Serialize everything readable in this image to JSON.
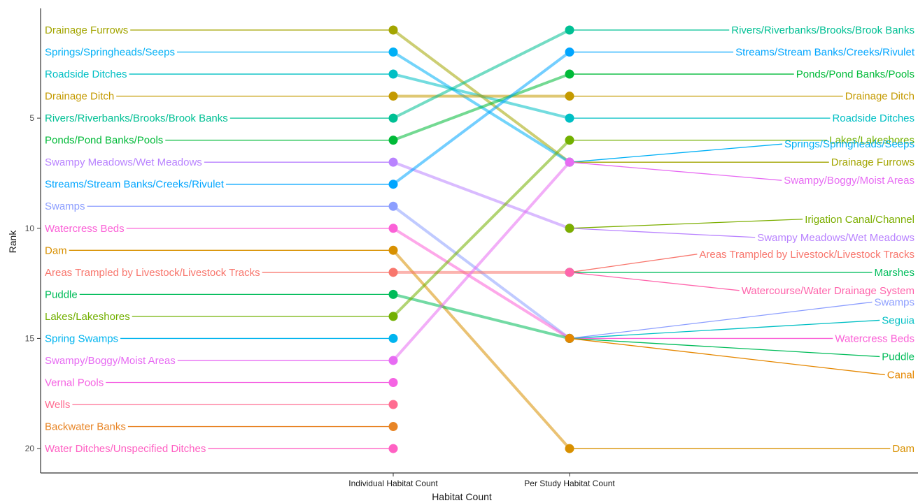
{
  "chart_data": {
    "type": "line",
    "subtype": "bump",
    "xlabel": "Habitat Count",
    "ylabel": "Rank",
    "x_categories": [
      "Individual Habitat Count",
      "Per Study Habitat Count"
    ],
    "y_ticks": [
      5,
      10,
      15,
      20
    ],
    "ylim": [
      0.5,
      21
    ],
    "y_reversed": true,
    "grid": false,
    "legend": "none",
    "series": [
      {
        "name": "Drainage Furrows",
        "color": "#A3A500",
        "ranks": [
          1,
          7
        ]
      },
      {
        "name": "Springs/Springheads/Seeps",
        "color": "#00B0F6",
        "ranks": [
          2,
          7
        ]
      },
      {
        "name": "Roadside Ditches",
        "color": "#00BFC4",
        "ranks": [
          3,
          5
        ]
      },
      {
        "name": "Drainage Ditch",
        "color": "#C49A00",
        "ranks": [
          4,
          4
        ]
      },
      {
        "name": "Rivers/Riverbanks/Brooks/Brook Banks",
        "color": "#00C094",
        "ranks": [
          5,
          1
        ]
      },
      {
        "name": "Ponds/Pond Banks/Pools",
        "color": "#00BA38",
        "ranks": [
          6,
          3
        ]
      },
      {
        "name": "Swampy Meadows/Wet Meadows",
        "color": "#B983FF",
        "ranks": [
          7,
          10
        ]
      },
      {
        "name": "Streams/Stream Banks/Creeks/Rivulet",
        "color": "#00A5FF",
        "ranks": [
          8,
          2
        ]
      },
      {
        "name": "Swamps",
        "color": "#8C9EFF",
        "ranks": [
          9,
          15
        ]
      },
      {
        "name": "Watercress Beds",
        "color": "#FB61D7",
        "ranks": [
          10,
          15
        ]
      },
      {
        "name": "Dam",
        "color": "#D89000",
        "ranks": [
          11,
          20
        ]
      },
      {
        "name": "Areas Trampled by Livestock/Livestock Tracks",
        "color": "#F8766D",
        "ranks": [
          12,
          12
        ]
      },
      {
        "name": "Puddle",
        "color": "#00BC59",
        "ranks": [
          13,
          15
        ]
      },
      {
        "name": "Lakes/Lakeshores",
        "color": "#72B000",
        "ranks": [
          14,
          6
        ]
      },
      {
        "name": "Spring Swamps",
        "color": "#00B4EF",
        "ranks": [
          15,
          null
        ]
      },
      {
        "name": "Swampy/Boggy/Moist Areas",
        "color": "#E76BF3",
        "ranks": [
          16,
          7
        ]
      },
      {
        "name": "Vernal Pools",
        "color": "#F564E3",
        "ranks": [
          17,
          null
        ]
      },
      {
        "name": "Wells",
        "color": "#FF6C91",
        "ranks": [
          18,
          null
        ]
      },
      {
        "name": "Backwater Banks",
        "color": "#E88526",
        "ranks": [
          19,
          null
        ]
      },
      {
        "name": "Water Ditches/Unspecified Ditches",
        "color": "#FF61C3",
        "ranks": [
          20,
          null
        ]
      },
      {
        "name": "Irigation Canal/Channel",
        "color": "#7CAE00",
        "ranks": [
          null,
          10
        ]
      },
      {
        "name": "Marshes",
        "color": "#00BD5C",
        "ranks": [
          null,
          12
        ]
      },
      {
        "name": "Watercourse/Water Drainage System",
        "color": "#FF65AC",
        "ranks": [
          null,
          12
        ]
      },
      {
        "name": "Seguia",
        "color": "#00BFC4",
        "ranks": [
          null,
          15
        ]
      },
      {
        "name": "Canal",
        "color": "#E58700",
        "ranks": [
          null,
          15
        ]
      }
    ],
    "right_labels": [
      {
        "name": "Rivers/Riverbanks/Brooks/Brook Banks",
        "color": "#00C094",
        "rank": 1
      },
      {
        "name": "Streams/Stream Banks/Creeks/Rivulet",
        "color": "#00A5FF",
        "rank": 2
      },
      {
        "name": "Ponds/Pond Banks/Pools",
        "color": "#00BA38",
        "rank": 3
      },
      {
        "name": "Drainage Ditch",
        "color": "#C49A00",
        "rank": 4
      },
      {
        "name": "Roadside Ditches",
        "color": "#00BFC4",
        "rank": 5
      },
      {
        "name": "Lakes/Lakeshores",
        "color": "#72B000",
        "rank": 6
      },
      {
        "name": "Springs/Springheads/Seeps",
        "color": "#00B0F6",
        "rank": 7
      },
      {
        "name": "Drainage Furrows",
        "color": "#A3A500",
        "rank": 7
      },
      {
        "name": "Swampy/Boggy/Moist Areas",
        "color": "#E76BF3",
        "rank": 7
      },
      {
        "name": "Irigation Canal/Channel",
        "color": "#7CAE00",
        "rank": 10
      },
      {
        "name": "Swampy Meadows/Wet Meadows",
        "color": "#B983FF",
        "rank": 10
      },
      {
        "name": "Areas Trampled by Livestock/Livestock Tracks",
        "color": "#F8766D",
        "rank": 12
      },
      {
        "name": "Marshes",
        "color": "#00BD5C",
        "rank": 12
      },
      {
        "name": "Watercourse/Water Drainage System",
        "color": "#FF65AC",
        "rank": 12
      },
      {
        "name": "Swamps",
        "color": "#8C9EFF",
        "rank": 15
      },
      {
        "name": "Seguia",
        "color": "#00BFC4",
        "rank": 15
      },
      {
        "name": "Watercress Beds",
        "color": "#FB61D7",
        "rank": 15
      },
      {
        "name": "Puddle",
        "color": "#00BC59",
        "rank": 15
      },
      {
        "name": "Canal",
        "color": "#E58700",
        "rank": 15
      },
      {
        "name": "Dam",
        "color": "#D89000",
        "rank": 20
      }
    ]
  }
}
